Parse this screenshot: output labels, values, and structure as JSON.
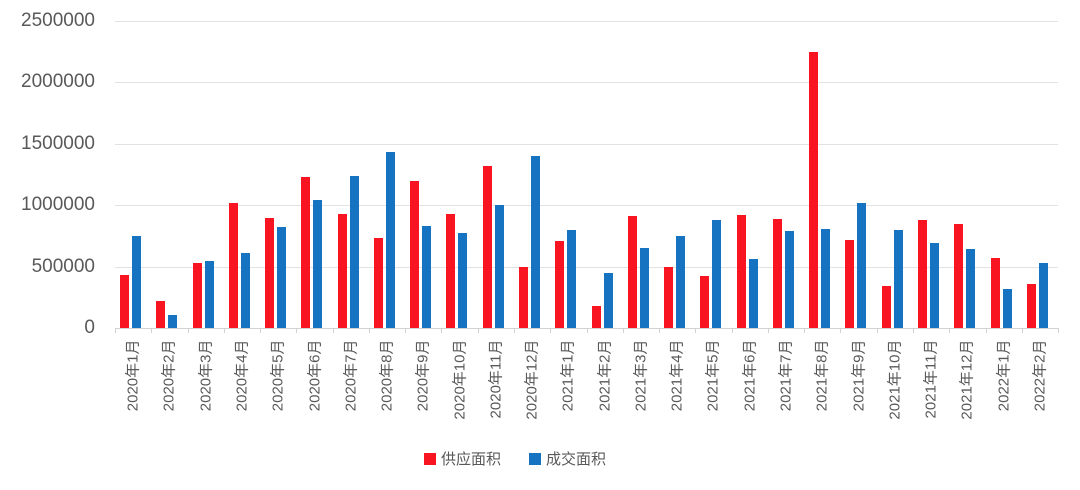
{
  "chart_data": {
    "type": "bar",
    "title": "",
    "categories": [
      "2020年1月",
      "2020年2月",
      "2020年3月",
      "2020年4月",
      "2020年5月",
      "2020年6月",
      "2020年7月",
      "2020年8月",
      "2020年9月",
      "2020年10月",
      "2020年11月",
      "2020年12月",
      "2021年1月",
      "2021年2月",
      "2021年3月",
      "2021年4月",
      "2021年5月",
      "2021年6月",
      "2021年7月",
      "2021年8月",
      "2021年9月",
      "2021年10月",
      "2021年11月",
      "2021年12月",
      "2022年1月",
      "2022年2月"
    ],
    "series": [
      {
        "name": "供应面积",
        "color": "#f81421",
        "values": [
          430000,
          220000,
          530000,
          1020000,
          900000,
          1230000,
          930000,
          730000,
          1200000,
          930000,
          1320000,
          500000,
          710000,
          180000,
          910000,
          500000,
          420000,
          920000,
          890000,
          2250000,
          720000,
          340000,
          880000,
          850000,
          570000,
          360000
        ]
      },
      {
        "name": "成交面积",
        "color": "#1673c2",
        "values": [
          750000,
          110000,
          550000,
          610000,
          820000,
          1040000,
          1240000,
          1430000,
          830000,
          770000,
          1000000,
          1400000,
          800000,
          450000,
          650000,
          750000,
          880000,
          560000,
          790000,
          810000,
          1020000,
          800000,
          690000,
          640000,
          320000,
          530000
        ]
      }
    ],
    "ylim": [
      0,
      2500000
    ],
    "y_ticks": [
      0,
      500000,
      1000000,
      1500000,
      2000000,
      2500000
    ],
    "y_tick_labels": [
      "0",
      "500000",
      "1000000",
      "1500000",
      "2000000",
      "2500000"
    ],
    "grid": true,
    "legend_position": "bottom"
  },
  "colors": {
    "grid": "#e2e2e2",
    "axis": "#d2d2d2",
    "text": "#595959",
    "background": "#ffffff"
  }
}
